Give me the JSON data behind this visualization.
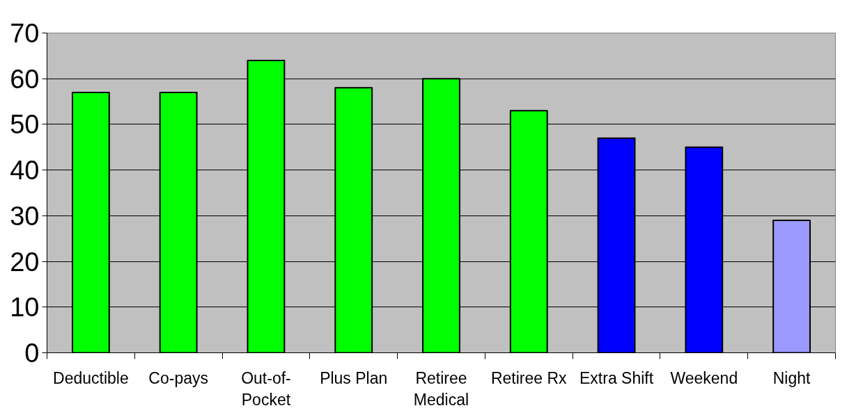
{
  "chart_data": {
    "type": "bar",
    "categories": [
      "Deductible",
      "Co-pays",
      "Out-of-Pocket",
      "Plus Plan",
      "Retiree Medical",
      "Retiree Rx",
      "Extra Shift",
      "Weekend",
      "Night"
    ],
    "values": [
      57,
      57,
      64,
      58,
      60,
      53,
      47,
      45,
      29
    ],
    "colors": [
      "#00ff00",
      "#00ff00",
      "#00ff00",
      "#00ff00",
      "#00ff00",
      "#00ff00",
      "#0000ff",
      "#0000ff",
      "#9999ff"
    ],
    "ylim": [
      0,
      70
    ],
    "yticks": [
      0,
      10,
      20,
      30,
      40,
      50,
      60,
      70
    ],
    "grid": "y"
  }
}
